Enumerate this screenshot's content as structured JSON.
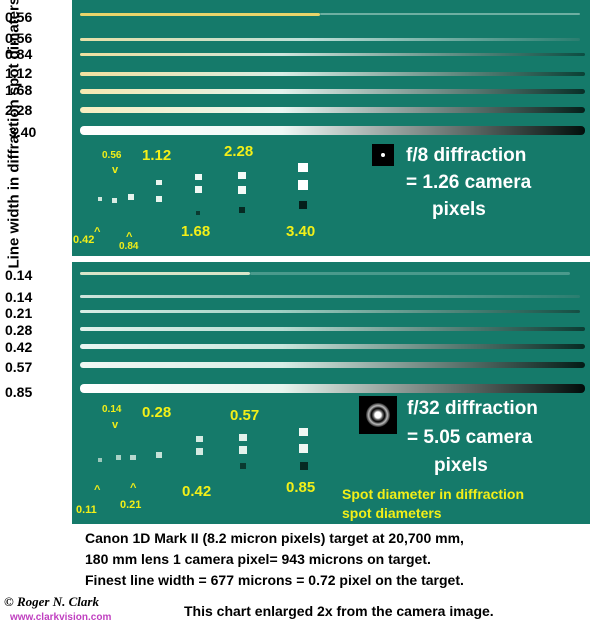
{
  "y_axis_label": "Line width in diffraction spot dimaters",
  "top_panel": {
    "line_labels": [
      "0.56",
      "0.56",
      "0.84",
      "1.12",
      "1.68",
      "2.28",
      "3.40"
    ],
    "spot_labels": [
      "0.56",
      "1.12",
      "2.28",
      "0.42",
      "0.84",
      "1.68",
      "3.40"
    ],
    "markers": {
      "v": "v",
      "caret1": "^",
      "caret2": "^"
    },
    "diffraction_text": [
      "f/8  diffraction",
      "= 1.26 camera",
      "pixels"
    ]
  },
  "bottom_panel": {
    "line_labels": [
      "0.14",
      "0.14",
      "0.21",
      "0.28",
      "0.42",
      "0.57",
      "0.85"
    ],
    "spot_labels": [
      "0.14",
      "0.28",
      "0.57",
      "0.11",
      "0.21",
      "0.42",
      "0.85"
    ],
    "markers": {
      "v": "v",
      "caret1": "^",
      "caret2": "^"
    },
    "diffraction_text": [
      "f/32 diffraction",
      "= 5.05 camera",
      "pixels"
    ],
    "spot_note": [
      "Spot diameter in diffraction",
      "spot diameters"
    ]
  },
  "caption": [
    "Canon 1D Mark II (8.2 micron pixels) target at 20,700 mm,",
    "180 mm lens 1 camera pixel= 943 microns on target.",
    "Finest line width = 677 microns = 0.72 pixel on the target."
  ],
  "copyright": "© Roger N. Clark",
  "url": "www.clarkvision.com",
  "enlarged_note": "This chart enlarged 2x from the camera image.",
  "colors": {
    "panel": "#157a6a",
    "label_yellow": "#f2ef18",
    "url_magenta": "#c040c0"
  }
}
